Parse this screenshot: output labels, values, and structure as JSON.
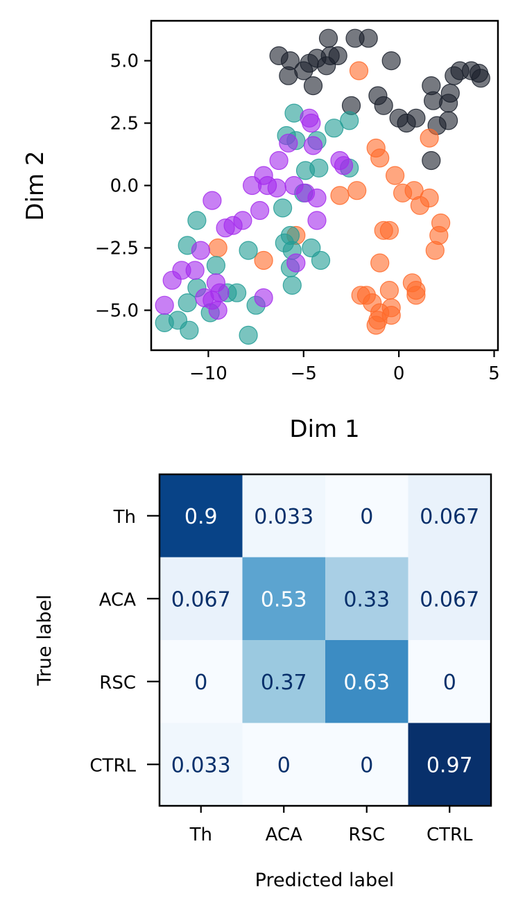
{
  "chart_data": [
    {
      "type": "scatter",
      "xlabel": "Dim 1",
      "ylabel": "Dim 2",
      "xlim": [
        -13,
        5.2
      ],
      "ylim": [
        -6.6,
        6.6
      ],
      "xticks": [
        -10,
        -5,
        0,
        5
      ],
      "xtick_labels": [
        "−10",
        "−5",
        "0",
        "5"
      ],
      "yticks": [
        -5.0,
        -2.5,
        0.0,
        2.5,
        5.0
      ],
      "ytick_labels": [
        "−5.0",
        "−2.5",
        "0.0",
        "2.5",
        "5.0"
      ],
      "grid": false,
      "series": [
        {
          "color": "#1a202c",
          "points": [
            [
              -6.3,
              5.2
            ],
            [
              -5.7,
              5.0
            ],
            [
              -5.8,
              4.4
            ],
            [
              -5.0,
              4.6
            ],
            [
              -4.7,
              4.9
            ],
            [
              -4.3,
              5.1
            ],
            [
              -3.8,
              4.8
            ],
            [
              -3.6,
              5.2
            ],
            [
              -3.7,
              5.9
            ],
            [
              -3.2,
              5.2
            ],
            [
              -2.3,
              5.9
            ],
            [
              -1.6,
              5.9
            ],
            [
              -0.4,
              5.0
            ],
            [
              -4.5,
              4.0
            ],
            [
              -2.5,
              3.2
            ],
            [
              -1.1,
              3.6
            ],
            [
              -0.8,
              3.2
            ],
            [
              0.0,
              2.7
            ],
            [
              0.4,
              2.5
            ],
            [
              0.9,
              2.7
            ],
            [
              1.7,
              4.0
            ],
            [
              1.8,
              3.4
            ],
            [
              2.0,
              2.4
            ],
            [
              2.6,
              3.3
            ],
            [
              2.7,
              3.7
            ],
            [
              2.9,
              4.4
            ],
            [
              3.2,
              4.6
            ],
            [
              3.8,
              4.6
            ],
            [
              4.2,
              4.5
            ],
            [
              4.3,
              4.3
            ],
            [
              2.6,
              2.6
            ],
            [
              1.7,
              1.0
            ]
          ]
        },
        {
          "color": "#ff6a2a",
          "points": [
            [
              -2.1,
              4.6
            ],
            [
              1.6,
              1.9
            ],
            [
              -1.2,
              1.5
            ],
            [
              -1.0,
              1.1
            ],
            [
              -0.2,
              0.4
            ],
            [
              0.2,
              -0.3
            ],
            [
              0.8,
              -0.2
            ],
            [
              1.1,
              -0.8
            ],
            [
              1.6,
              -0.5
            ],
            [
              -2.2,
              -0.2
            ],
            [
              -3.1,
              -0.4
            ],
            [
              -5.4,
              -2.0
            ],
            [
              -9.5,
              -2.5
            ],
            [
              -7.1,
              -3.0
            ],
            [
              -0.8,
              -1.8
            ],
            [
              -0.5,
              -1.8
            ],
            [
              2.2,
              -1.5
            ],
            [
              2.1,
              -2.0
            ],
            [
              1.9,
              -2.6
            ],
            [
              -1.0,
              -3.1
            ],
            [
              0.7,
              -3.9
            ],
            [
              0.9,
              -4.2
            ],
            [
              -0.5,
              -4.2
            ],
            [
              -2.0,
              -4.4
            ],
            [
              -1.7,
              -4.4
            ],
            [
              -1.4,
              -4.7
            ],
            [
              -1.0,
              -5.1
            ],
            [
              -0.4,
              -4.9
            ],
            [
              -0.4,
              -5.2
            ],
            [
              -1.1,
              -5.4
            ],
            [
              -1.2,
              -5.6
            ],
            [
              0.9,
              -4.4
            ]
          ]
        },
        {
          "color": "#219c95",
          "points": [
            [
              -5.5,
              2.9
            ],
            [
              -5.9,
              2.0
            ],
            [
              -5.4,
              1.8
            ],
            [
              -4.3,
              1.8
            ],
            [
              -3.4,
              2.3
            ],
            [
              -2.6,
              2.6
            ],
            [
              -4.9,
              0.6
            ],
            [
              -4.2,
              0.7
            ],
            [
              -2.6,
              0.7
            ],
            [
              -5.0,
              -0.3
            ],
            [
              -6.1,
              -0.9
            ],
            [
              -5.7,
              -2.0
            ],
            [
              -6.0,
              -2.3
            ],
            [
              -5.6,
              -2.6
            ],
            [
              -4.6,
              -2.5
            ],
            [
              -4.1,
              -3.0
            ],
            [
              -5.7,
              -3.3
            ],
            [
              -5.6,
              -4.0
            ],
            [
              -7.9,
              -2.6
            ],
            [
              -10.6,
              -1.4
            ],
            [
              -11.1,
              -2.4
            ],
            [
              -9.6,
              -3.2
            ],
            [
              -10.6,
              -4.1
            ],
            [
              -9.0,
              -4.3
            ],
            [
              -8.5,
              -4.3
            ],
            [
              -9.9,
              -5.1
            ],
            [
              -11.1,
              -4.7
            ],
            [
              -11.6,
              -5.4
            ],
            [
              -12.3,
              -5.5
            ],
            [
              -11.0,
              -5.8
            ],
            [
              -7.5,
              -4.8
            ],
            [
              -7.9,
              -6.0
            ]
          ]
        },
        {
          "color": "#a42bec",
          "points": [
            [
              -4.7,
              2.7
            ],
            [
              -4.6,
              2.5
            ],
            [
              -5.8,
              1.7
            ],
            [
              -4.5,
              1.6
            ],
            [
              -6.3,
              1.0
            ],
            [
              -3.1,
              1.0
            ],
            [
              -2.9,
              0.8
            ],
            [
              -7.1,
              0.4
            ],
            [
              -7.7,
              0.0
            ],
            [
              -6.9,
              0.0
            ],
            [
              -6.4,
              -0.1
            ],
            [
              -5.5,
              0.0
            ],
            [
              -4.9,
              -0.3
            ],
            [
              -4.3,
              -0.5
            ],
            [
              -9.8,
              -0.6
            ],
            [
              -7.3,
              -1.0
            ],
            [
              -9.1,
              -1.7
            ],
            [
              -8.7,
              -1.6
            ],
            [
              -8.2,
              -1.4
            ],
            [
              -4.3,
              -1.4
            ],
            [
              -10.4,
              -2.6
            ],
            [
              -5.4,
              -3.1
            ],
            [
              -11.4,
              -3.4
            ],
            [
              -10.7,
              -3.4
            ],
            [
              -11.9,
              -3.8
            ],
            [
              -9.6,
              -3.9
            ],
            [
              -7.1,
              -4.5
            ],
            [
              -10.2,
              -4.5
            ],
            [
              -9.8,
              -4.6
            ],
            [
              -9.5,
              -5.0
            ],
            [
              -12.3,
              -4.8
            ],
            [
              -9.4,
              -4.3
            ]
          ]
        }
      ]
    },
    {
      "type": "heatmap",
      "xlabel": "Predicted label",
      "ylabel": "True label",
      "row_labels": [
        "Th",
        "ACA",
        "RSC",
        "CTRL"
      ],
      "col_labels": [
        "Th",
        "ACA",
        "RSC",
        "CTRL"
      ],
      "values": [
        [
          0.9,
          0.033,
          0,
          0.067
        ],
        [
          0.067,
          0.53,
          0.33,
          0.067
        ],
        [
          0,
          0.37,
          0.63,
          0
        ],
        [
          0.033,
          0,
          0,
          0.97
        ]
      ],
      "value_labels": [
        [
          "0.9",
          "0.033",
          "0",
          "0.067"
        ],
        [
          "0.067",
          "0.53",
          "0.33",
          "0.067"
        ],
        [
          "0",
          "0.37",
          "0.63",
          "0"
        ],
        [
          "0.033",
          "0",
          "0",
          "0.97"
        ]
      ],
      "colormap": "Blues",
      "vmin": 0,
      "vmax": 0.97
    }
  ]
}
